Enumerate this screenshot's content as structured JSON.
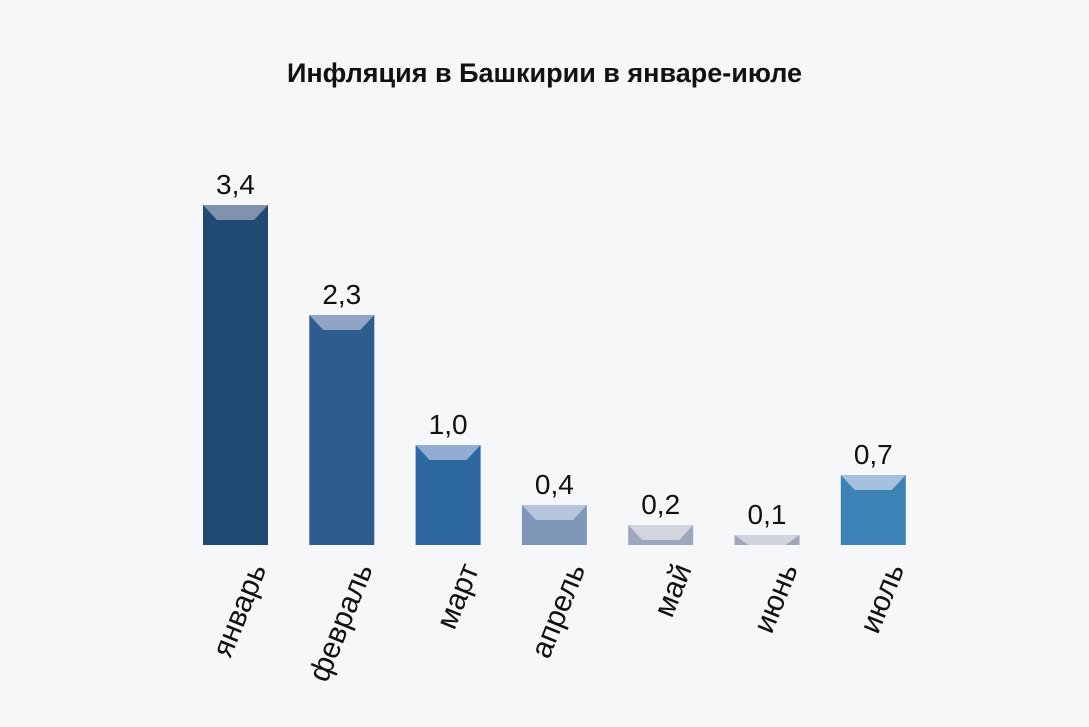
{
  "chart_data": {
    "type": "bar",
    "title": "Инфляция в Башкирии в январе-июле",
    "categories": [
      "январь",
      "февраль",
      "март",
      "апрель",
      "май",
      "июнь",
      "июль"
    ],
    "values": [
      3.4,
      2.3,
      1.0,
      0.4,
      0.2,
      0.1,
      0.7
    ],
    "value_labels": [
      "3,4",
      "2,3",
      "1,0",
      "0,4",
      "0,2",
      "0,1",
      "0,7"
    ],
    "xlabel": "",
    "ylabel": "",
    "ylim": [
      0,
      3.4
    ],
    "grid": false,
    "legend": "none",
    "colors": {
      "bars": [
        "#1f4a72",
        "#2d5c8e",
        "#2d68a1",
        "#7f97b8",
        "#9ea8bd",
        "#9ea7bc",
        "#3d82b4"
      ],
      "caps": [
        "#8092ad",
        "#92a4c6",
        "#93acd3",
        "#b5c6dc",
        "#d0d5de",
        "#cfd4dd",
        "#a5c1de"
      ]
    }
  }
}
